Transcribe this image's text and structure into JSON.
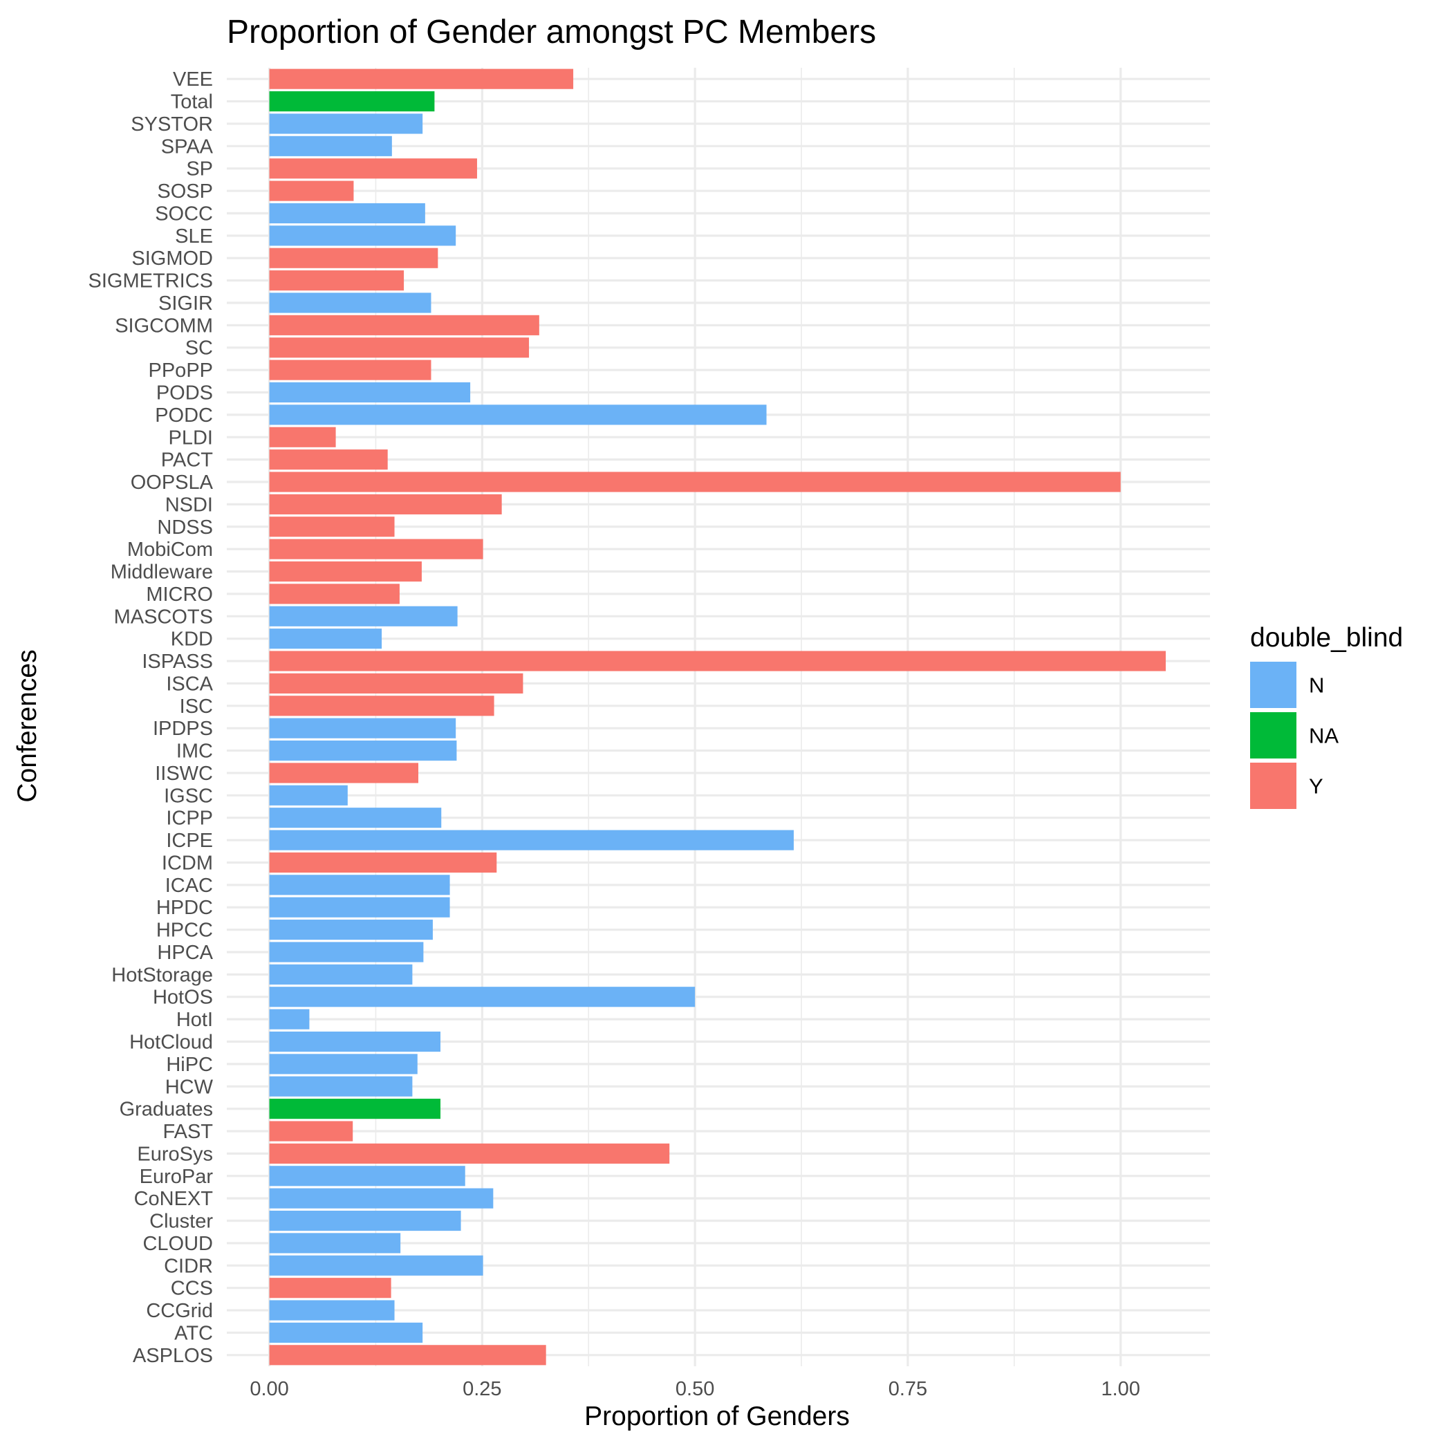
{
  "chart_data": {
    "type": "bar",
    "orientation": "horizontal",
    "title": "Proportion of Gender amongst PC Members",
    "xlabel": "Proportion of Genders",
    "ylabel": "Conferences",
    "xlim": [
      -0.05,
      1.105
    ],
    "x_ticks": [
      0.0,
      0.25,
      0.5,
      0.75,
      1.0
    ],
    "x_tick_labels": [
      "0.00",
      "0.25",
      "0.50",
      "0.75",
      "1.00"
    ],
    "grid": true,
    "legend": {
      "title": "double_blind",
      "position": "right",
      "items": [
        {
          "label": "N",
          "color": "#6bb2f6"
        },
        {
          "label": "NA",
          "color": "#00ba38"
        },
        {
          "label": "Y",
          "color": "#f8766d"
        }
      ]
    },
    "categories": [
      "ASPLOS",
      "ATC",
      "CCGrid",
      "CCS",
      "CIDR",
      "CLOUD",
      "Cluster",
      "CoNEXT",
      "EuroPar",
      "EuroSys",
      "FAST",
      "Graduates",
      "HCW",
      "HiPC",
      "HotCloud",
      "HotI",
      "HotOS",
      "HotStorage",
      "HPCA",
      "HPCC",
      "HPDC",
      "ICAC",
      "ICDM",
      "ICPE",
      "ICPP",
      "IGSC",
      "IISWC",
      "IMC",
      "IPDPS",
      "ISC",
      "ISCA",
      "ISPASS",
      "KDD",
      "MASCOTS",
      "MICRO",
      "Middleware",
      "MobiCom",
      "NDSS",
      "NSDI",
      "OOPSLA",
      "PACT",
      "PLDI",
      "PODC",
      "PODS",
      "PPoPP",
      "SC",
      "SIGCOMM",
      "SIGIR",
      "SIGMETRICS",
      "SIGMOD",
      "SLE",
      "SOCC",
      "SOSP",
      "SP",
      "SPAA",
      "SYSTOR",
      "Total",
      "VEE"
    ],
    "values": [
      0.325,
      0.18,
      0.147,
      0.143,
      0.251,
      0.154,
      0.225,
      0.263,
      0.23,
      0.47,
      0.098,
      0.201,
      0.168,
      0.174,
      0.201,
      0.047,
      0.5,
      0.168,
      0.181,
      0.192,
      0.212,
      0.212,
      0.267,
      0.616,
      0.202,
      0.092,
      0.175,
      0.22,
      0.219,
      0.264,
      0.298,
      1.053,
      0.132,
      0.221,
      0.153,
      0.179,
      0.251,
      0.147,
      0.273,
      1.0,
      0.139,
      0.078,
      0.584,
      0.236,
      0.19,
      0.305,
      0.317,
      0.19,
      0.158,
      0.198,
      0.219,
      0.183,
      0.099,
      0.244,
      0.144,
      0.18,
      0.194,
      0.357
    ],
    "double_blind": [
      "Y",
      "N",
      "N",
      "Y",
      "N",
      "N",
      "N",
      "N",
      "N",
      "Y",
      "Y",
      "NA",
      "N",
      "N",
      "N",
      "N",
      "N",
      "N",
      "N",
      "N",
      "N",
      "N",
      "Y",
      "N",
      "N",
      "N",
      "Y",
      "N",
      "N",
      "Y",
      "Y",
      "Y",
      "N",
      "N",
      "Y",
      "Y",
      "Y",
      "Y",
      "Y",
      "Y",
      "Y",
      "Y",
      "N",
      "N",
      "Y",
      "Y",
      "Y",
      "N",
      "Y",
      "Y",
      "N",
      "N",
      "Y",
      "Y",
      "N",
      "N",
      "NA",
      "Y"
    ]
  }
}
